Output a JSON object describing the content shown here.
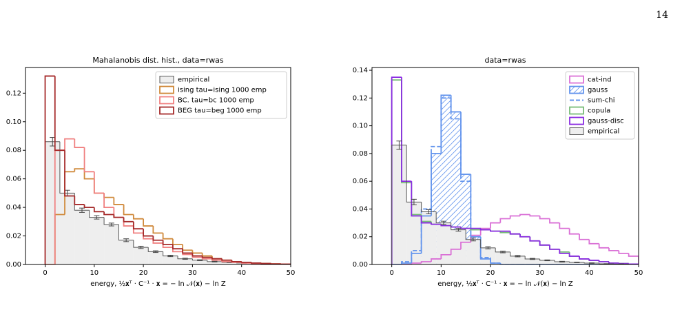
{
  "page_number": "14",
  "chart_data": [
    {
      "type": "histogram",
      "title": "Mahalanobis dist. hist., data=rwas",
      "x_label": "energy, ½𝐱ᵀ · C⁻¹ · 𝐱 = − ln 𝒩(𝐱) − ln Z",
      "xlim": [
        -4,
        50
      ],
      "xticks": [
        0,
        10,
        20,
        30,
        40,
        50
      ],
      "ylim": [
        0,
        0.138
      ],
      "yticks": [
        {
          "value": 0,
          "label": "0.00"
        },
        {
          "value": 0.02,
          "label": "0.02"
        },
        {
          "value": 0.04,
          "label": "0.04"
        },
        {
          "value": 0.06,
          "label": "0.06"
        },
        {
          "value": 0.08,
          "label": "0.08"
        },
        {
          "value": 0.1,
          "label": "0.10"
        },
        {
          "value": 0.12,
          "label": "0.12"
        }
      ],
      "legend": "upper right",
      "series": [
        {
          "name": "empirical",
          "color": "#555555",
          "fill": "#eeeeee",
          "bins": [
            0,
            3,
            6,
            9,
            12,
            15,
            18,
            21,
            24,
            27,
            30,
            33,
            36,
            39,
            42,
            45,
            48
          ],
          "values": [
            0.086,
            0.05,
            0.038,
            0.033,
            0.028,
            0.017,
            0.012,
            0.009,
            0.006,
            0.004,
            0.003,
            0.002,
            0.0015,
            0.001,
            0.0005,
            0.0003
          ],
          "errors": [
            0.003,
            0.002,
            0.0015,
            0.0012,
            0.001,
            0.001,
            0.0008,
            0.0006,
            0.0005,
            0.0004,
            0.0003,
            0.0003,
            0.0002,
            0.0002,
            0.0001,
            0.0001
          ]
        },
        {
          "name": "ising tau=ising 1000  emp",
          "color": "#d08a3c",
          "bins": [
            0,
            2,
            4,
            6,
            8,
            10,
            12,
            14,
            16,
            18,
            20,
            22,
            24,
            26,
            28,
            30,
            32,
            34,
            36,
            38,
            40,
            42,
            44,
            46,
            48,
            50
          ],
          "values": [
            0,
            0.035,
            0.065,
            0.067,
            0.06,
            0.05,
            0.047,
            0.042,
            0.035,
            0.032,
            0.027,
            0.022,
            0.018,
            0.014,
            0.01,
            0.008,
            0.006,
            0.004,
            0.003,
            0.002,
            0.0015,
            0.001,
            0.0007,
            0.0004,
            0.0002
          ]
        },
        {
          "name": "BC. tau=bc 1000  emp",
          "color": "#f08080",
          "bins": [
            0,
            2,
            4,
            6,
            8,
            10,
            12,
            14,
            16,
            18,
            20,
            22,
            24,
            26,
            28,
            30,
            32,
            34,
            36,
            38,
            40,
            42,
            44,
            46,
            48,
            50
          ],
          "values": [
            0,
            0.08,
            0.088,
            0.082,
            0.065,
            0.05,
            0.04,
            0.033,
            0.027,
            0.022,
            0.018,
            0.015,
            0.012,
            0.009,
            0.007,
            0.005,
            0.004,
            0.003,
            0.002,
            0.0015,
            0.001,
            0.0007,
            0.0005,
            0.0003,
            0.0002
          ]
        },
        {
          "name": "BEG tau=beg 1000  emp",
          "color": "#a52a2a",
          "bins": [
            0,
            2,
            4,
            6,
            8,
            10,
            12,
            14,
            16,
            18,
            20,
            22,
            24,
            26,
            28,
            30,
            32,
            34,
            36,
            38,
            40,
            42,
            44,
            46,
            48,
            50
          ],
          "values": [
            0.132,
            0.08,
            0.048,
            0.042,
            0.04,
            0.037,
            0.035,
            0.033,
            0.03,
            0.025,
            0.02,
            0.017,
            0.014,
            0.011,
            0.008,
            0.006,
            0.005,
            0.004,
            0.003,
            0.002,
            0.0015,
            0.001,
            0.0007,
            0.0004,
            0.0002
          ]
        }
      ]
    },
    {
      "type": "histogram",
      "title": "data=rwas",
      "x_label": "energy, ½𝐱ᵀ · C⁻¹ · 𝐱 = − ln 𝒩(𝐱) − ln Z",
      "xlim": [
        -4,
        50
      ],
      "xticks": [
        0,
        10,
        20,
        30,
        40,
        50
      ],
      "ylim": [
        0,
        0.142
      ],
      "yticks": [
        {
          "value": 0,
          "label": "0.00"
        },
        {
          "value": 0.02,
          "label": "0.02"
        },
        {
          "value": 0.04,
          "label": "0.04"
        },
        {
          "value": 0.06,
          "label": "0.06"
        },
        {
          "value": 0.08,
          "label": "0.08"
        },
        {
          "value": 0.1,
          "label": "0.10"
        },
        {
          "value": 0.12,
          "label": "0.12"
        },
        {
          "value": 0.14,
          "label": "0.14"
        }
      ],
      "legend": "upper right",
      "series": [
        {
          "name": "cat-ind",
          "color": "#da70d6",
          "bins": [
            0,
            2,
            4,
            6,
            8,
            10,
            12,
            14,
            16,
            18,
            20,
            22,
            24,
            26,
            28,
            30,
            32,
            34,
            36,
            38,
            40,
            42,
            44,
            46,
            48,
            50
          ],
          "values": [
            0,
            0,
            0.001,
            0.002,
            0.004,
            0.007,
            0.011,
            0.016,
            0.021,
            0.026,
            0.03,
            0.033,
            0.035,
            0.036,
            0.035,
            0.033,
            0.03,
            0.026,
            0.022,
            0.018,
            0.015,
            0.012,
            0.01,
            0.008,
            0.006
          ]
        },
        {
          "name": "gauss",
          "color": "#6495ed",
          "hatch": true,
          "bins": [
            0,
            2,
            4,
            6,
            8,
            10,
            12,
            14,
            16,
            18,
            20,
            22,
            24,
            26,
            28,
            30,
            32,
            34,
            36,
            38,
            40,
            42,
            44,
            46,
            48,
            50
          ],
          "values": [
            0,
            0.001,
            0.008,
            0.035,
            0.08,
            0.122,
            0.11,
            0.065,
            0.02,
            0.004,
            0.001,
            0,
            0,
            0,
            0,
            0,
            0,
            0,
            0,
            0,
            0,
            0,
            0,
            0,
            0
          ]
        },
        {
          "name": "sum-chi",
          "color": "#6495ed",
          "linestyle": "dashed",
          "bins": [
            0,
            2,
            4,
            6,
            8,
            10,
            12,
            14,
            16,
            18,
            20,
            22,
            24,
            26,
            28,
            30,
            32,
            34,
            36,
            38,
            40,
            42,
            44,
            46,
            48,
            50
          ],
          "values": [
            0,
            0.002,
            0.01,
            0.04,
            0.085,
            0.12,
            0.105,
            0.06,
            0.02,
            0.005,
            0.001,
            0,
            0,
            0,
            0,
            0,
            0,
            0,
            0,
            0,
            0,
            0,
            0,
            0,
            0
          ]
        },
        {
          "name": "copula",
          "color": "#77bb77",
          "bins": [
            0,
            2,
            4,
            6,
            8,
            10,
            12,
            14,
            16,
            18,
            20,
            22,
            24,
            26,
            28,
            30,
            32,
            34,
            36,
            38,
            40,
            42,
            44,
            46,
            48,
            50
          ],
          "values": [
            0.133,
            0.059,
            0.036,
            0.031,
            0.029,
            0.028,
            0.027,
            0.026,
            0.025,
            0.025,
            0.024,
            0.023,
            0.022,
            0.02,
            0.017,
            0.014,
            0.011,
            0.009,
            0.006,
            0.004,
            0.003,
            0.002,
            0.001,
            0.0007,
            0.0003
          ]
        },
        {
          "name": "gauss-disc",
          "color": "#8a2be2",
          "bins": [
            0,
            2,
            4,
            6,
            8,
            10,
            12,
            14,
            16,
            18,
            20,
            22,
            24,
            26,
            28,
            30,
            32,
            34,
            36,
            38,
            40,
            42,
            44,
            46,
            48,
            50
          ],
          "values": [
            0.135,
            0.06,
            0.035,
            0.03,
            0.029,
            0.028,
            0.027,
            0.026,
            0.026,
            0.025,
            0.024,
            0.024,
            0.022,
            0.02,
            0.017,
            0.014,
            0.011,
            0.008,
            0.006,
            0.004,
            0.003,
            0.002,
            0.001,
            0.0007,
            0.0003
          ]
        },
        {
          "name": "empirical",
          "color": "#555555",
          "fill": "#eeeeee",
          "bins": [
            0,
            3,
            6,
            9,
            12,
            15,
            18,
            21,
            24,
            27,
            30,
            33,
            36,
            39,
            42,
            45,
            48
          ],
          "values": [
            0.086,
            0.045,
            0.038,
            0.03,
            0.025,
            0.018,
            0.012,
            0.009,
            0.006,
            0.004,
            0.003,
            0.002,
            0.0015,
            0.001,
            0.0005,
            0.0003
          ],
          "errors": [
            0.003,
            0.002,
            0.0015,
            0.0012,
            0.001,
            0.001,
            0.0008,
            0.0006,
            0.0005,
            0.0004,
            0.0003,
            0.0003,
            0.0002,
            0.0002,
            0.0001,
            0.0001
          ]
        }
      ]
    }
  ]
}
